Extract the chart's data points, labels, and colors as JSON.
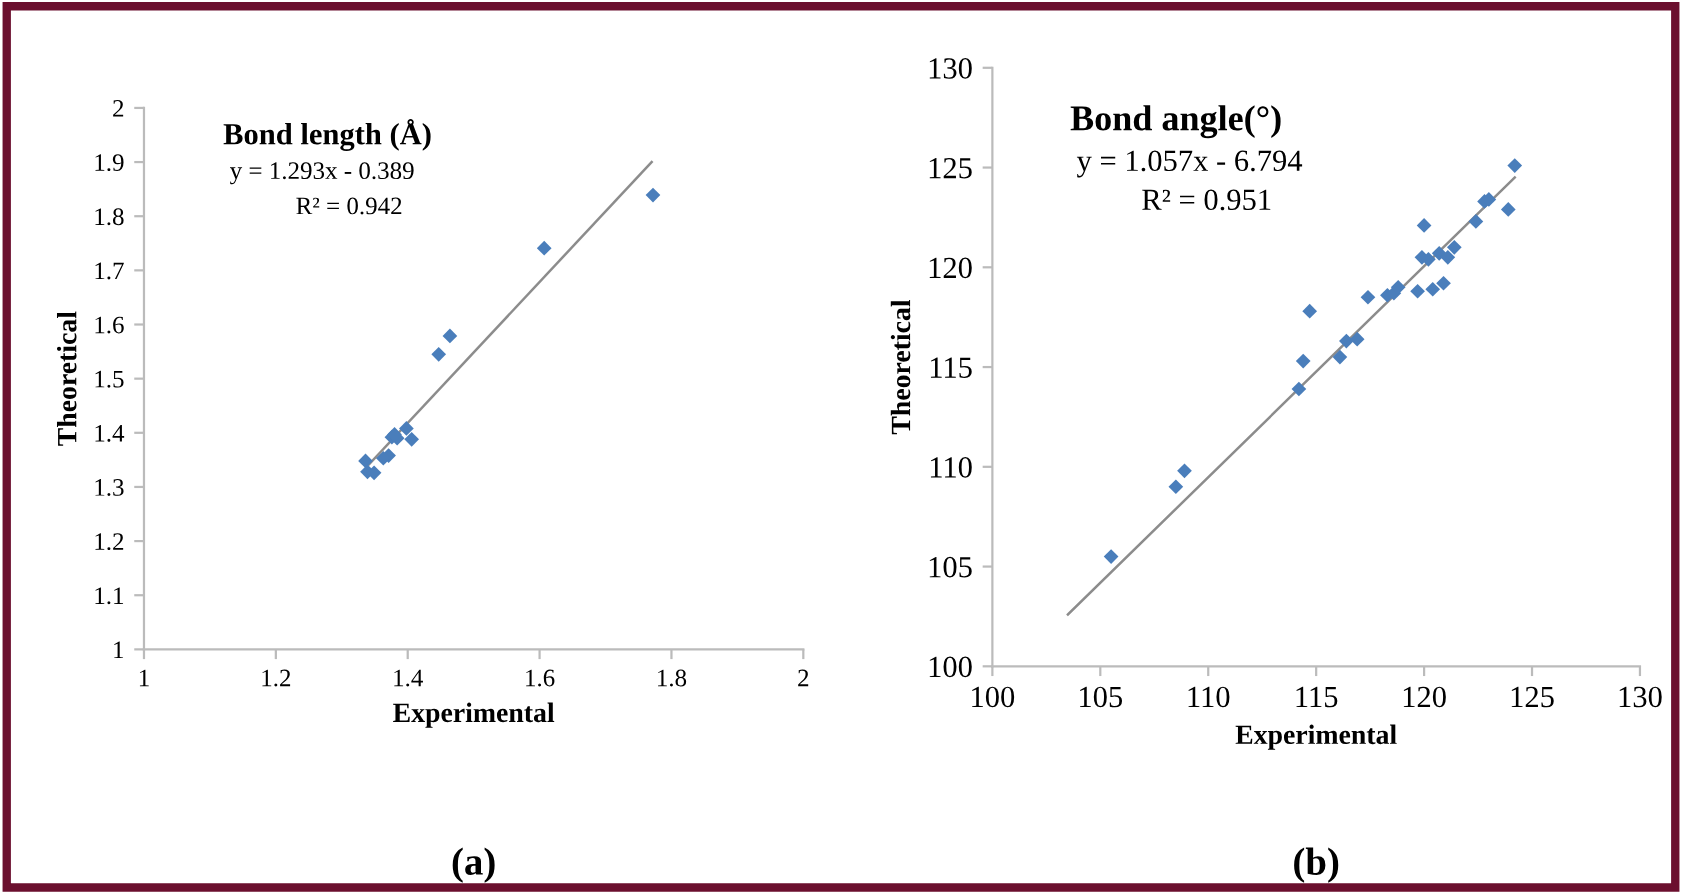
{
  "chart_data": [
    {
      "type": "scatter",
      "title": "Bond length (Å)",
      "xlabel": "Experimental",
      "ylabel": "Theoretical",
      "annotations": [
        "y = 1.293x - 0.389",
        "R² = 0.942",
        "(a)"
      ],
      "xlim": [
        1,
        2
      ],
      "xticks": [
        1,
        1.2,
        1.4,
        1.6,
        1.8,
        2
      ],
      "ylim": [
        1,
        2
      ],
      "yticks": [
        1,
        1.1,
        1.2,
        1.3,
        1.4,
        1.5,
        1.6,
        1.7,
        1.8,
        1.9,
        2
      ],
      "grid": false,
      "legend": false,
      "tick_labels": "xy",
      "series": [
        {
          "marker": "diamond",
          "color": "#4a7ebb",
          "x": [
            1.772,
            1.607,
            1.464,
            1.447,
            1.398,
            1.406,
            1.376,
            1.384,
            1.38,
            1.371,
            1.363,
            1.336,
            1.339,
            1.349
          ],
          "values": [
            1.839,
            1.741,
            1.579,
            1.545,
            1.408,
            1.388,
            1.392,
            1.39,
            1.397,
            1.358,
            1.353,
            1.348,
            1.328,
            1.326
          ]
        },
        {
          "type": "line",
          "color": "#8c8c8c",
          "x": [
            1.34,
            1.77
          ],
          "values": [
            1.34,
            1.9
          ]
        }
      ]
    },
    {
      "type": "scatter",
      "title": "Bond angle(°)",
      "xlabel": "Experimental",
      "ylabel": "Theoretical",
      "annotations": [
        "y = 1.057x - 6.794",
        "R² = 0.951",
        "(b)"
      ],
      "xlim": [
        100,
        130
      ],
      "xticks": [
        100,
        105,
        110,
        115,
        120,
        125,
        130
      ],
      "ylim": [
        100,
        130
      ],
      "yticks": [
        100,
        105,
        110,
        115,
        120,
        125,
        130
      ],
      "grid": false,
      "legend": false,
      "tick_labels": "xy",
      "series": [
        {
          "marker": "diamond",
          "color": "#4a7ebb",
          "x": [
            105.5,
            108.5,
            108.9,
            114.2,
            114.4,
            114.7,
            116.1,
            116.4,
            116.9,
            117.4,
            118.3,
            118.6,
            118.8,
            119.7,
            119.9,
            120.0,
            120.2,
            120.4,
            120.7,
            120.9,
            121.1,
            121.4,
            122.4,
            122.8,
            123.0,
            123.9,
            124.2
          ],
          "values": [
            105.5,
            109.0,
            109.8,
            113.9,
            115.3,
            117.8,
            115.5,
            116.3,
            116.4,
            118.5,
            118.6,
            118.7,
            119.0,
            118.8,
            120.5,
            122.1,
            120.4,
            118.9,
            120.7,
            119.2,
            120.5,
            121.0,
            122.3,
            123.3,
            123.4,
            122.9,
            125.1
          ]
        },
        {
          "type": "line",
          "color": "#8c8c8c",
          "x": [
            103.5,
            124.2
          ],
          "values": [
            102.6,
            124.5
          ]
        }
      ]
    }
  ]
}
